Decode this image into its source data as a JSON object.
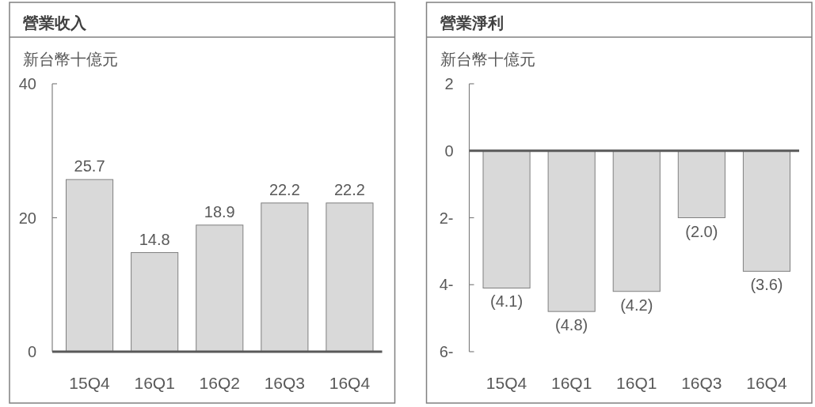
{
  "chart_data": [
    {
      "type": "bar",
      "title": "營業收入",
      "ylabel": "新台幣十億元",
      "categories": [
        "15Q4",
        "16Q1",
        "16Q2",
        "16Q3",
        "16Q4"
      ],
      "values": [
        25.7,
        14.8,
        18.9,
        22.2,
        22.2
      ],
      "color": "#d9d9d9",
      "ylim": [
        0,
        40
      ],
      "yticks": [
        0,
        20,
        40
      ],
      "data_labels": true
    },
    {
      "type": "bar",
      "title": "營業淨利",
      "ylabel": "新台幣十億元",
      "categories": [
        "15Q4",
        "16Q1",
        "16Q1",
        "16Q3",
        "16Q4"
      ],
      "values": [
        -4.1,
        -4.8,
        -4.2,
        -2.0,
        -3.6
      ],
      "color": "#d9d9d9",
      "ylim": [
        -6,
        2
      ],
      "yticks": [
        {
          "value": -6,
          "label": "6-"
        },
        {
          "value": -4,
          "label": "4-"
        },
        {
          "value": -2,
          "label": "2-"
        },
        0,
        2
      ],
      "value_labels": [
        "(4.1)",
        "(4.8)",
        "(4.2)",
        "(2.0)",
        "(3.6)"
      ]
    }
  ]
}
